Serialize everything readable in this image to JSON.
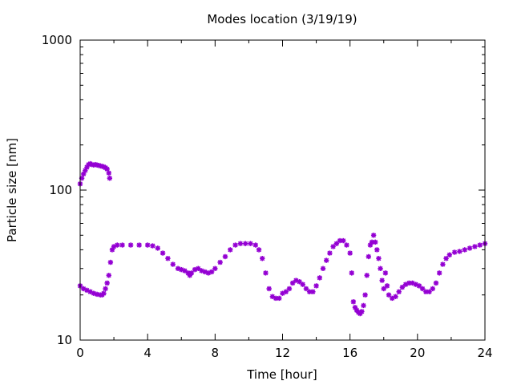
{
  "chart_data": {
    "type": "scatter",
    "title": "Modes location (3/19/19)",
    "xlabel": "Time [hour]",
    "ylabel": "Particle size [nm]",
    "xlim": [
      0,
      24
    ],
    "ylim": [
      10,
      1000
    ],
    "yscale": "log",
    "grid": false,
    "legend": "none",
    "marker_color": "#9400d3",
    "x_ticks": [
      0,
      4,
      8,
      12,
      16,
      20,
      24
    ],
    "x_tick_labels": [
      "0",
      "4",
      "8",
      "12",
      "16",
      "20",
      "24"
    ],
    "y_ticks": [
      10,
      100,
      1000
    ],
    "y_tick_labels": [
      "10",
      "100",
      "1000"
    ],
    "series": [
      {
        "points": [
          [
            0.0,
            110
          ],
          [
            0.1,
            120
          ],
          [
            0.2,
            128
          ],
          [
            0.3,
            135
          ],
          [
            0.4,
            142
          ],
          [
            0.5,
            148
          ],
          [
            0.6,
            150
          ],
          [
            0.7,
            148
          ],
          [
            0.8,
            147
          ],
          [
            0.9,
            148
          ],
          [
            1.0,
            147
          ],
          [
            1.1,
            146
          ],
          [
            1.2,
            145
          ],
          [
            1.3,
            144
          ],
          [
            1.4,
            143
          ],
          [
            1.5,
            141
          ],
          [
            1.6,
            138
          ],
          [
            1.7,
            130
          ],
          [
            1.75,
            120
          ]
        ]
      },
      {
        "points": [
          [
            0.0,
            23
          ],
          [
            0.2,
            22
          ],
          [
            0.4,
            21.5
          ],
          [
            0.6,
            21
          ],
          [
            0.8,
            20.5
          ],
          [
            1.0,
            20.2
          ],
          [
            1.2,
            20
          ],
          [
            1.3,
            20
          ],
          [
            1.4,
            20.5
          ],
          [
            1.5,
            22
          ],
          [
            1.6,
            24
          ],
          [
            1.7,
            27
          ],
          [
            1.8,
            33
          ],
          [
            1.9,
            40
          ],
          [
            2.0,
            42
          ],
          [
            2.2,
            43
          ],
          [
            2.5,
            43
          ],
          [
            3.0,
            43
          ],
          [
            3.5,
            43
          ],
          [
            4.0,
            43
          ],
          [
            4.3,
            42.5
          ],
          [
            4.6,
            41
          ],
          [
            4.9,
            38
          ],
          [
            5.2,
            35
          ],
          [
            5.5,
            32
          ],
          [
            5.8,
            30
          ],
          [
            6.0,
            29.5
          ],
          [
            6.2,
            29
          ],
          [
            6.4,
            28
          ],
          [
            6.5,
            27
          ],
          [
            6.6,
            28
          ],
          [
            6.8,
            29.5
          ],
          [
            7.0,
            30
          ],
          [
            7.2,
            29
          ],
          [
            7.4,
            28.5
          ],
          [
            7.6,
            28
          ],
          [
            7.8,
            28.5
          ],
          [
            8.0,
            30
          ],
          [
            8.3,
            33
          ],
          [
            8.6,
            36
          ],
          [
            8.9,
            40
          ],
          [
            9.2,
            43
          ],
          [
            9.5,
            44
          ],
          [
            9.8,
            44
          ],
          [
            10.1,
            44
          ],
          [
            10.4,
            43
          ],
          [
            10.6,
            40
          ],
          [
            10.8,
            35
          ],
          [
            11.0,
            28
          ],
          [
            11.2,
            22
          ],
          [
            11.4,
            19.5
          ],
          [
            11.6,
            19
          ],
          [
            11.8,
            19
          ],
          [
            12.0,
            20.5
          ],
          [
            12.2,
            21
          ],
          [
            12.4,
            22
          ],
          [
            12.6,
            24
          ],
          [
            12.8,
            25
          ],
          [
            13.0,
            24.5
          ],
          [
            13.2,
            23.5
          ],
          [
            13.4,
            22
          ],
          [
            13.6,
            21
          ],
          [
            13.8,
            21
          ],
          [
            14.0,
            23
          ],
          [
            14.2,
            26
          ],
          [
            14.4,
            30
          ],
          [
            14.6,
            34
          ],
          [
            14.8,
            38
          ],
          [
            15.0,
            42
          ],
          [
            15.2,
            44
          ],
          [
            15.4,
            46
          ],
          [
            15.6,
            46
          ],
          [
            15.8,
            43
          ],
          [
            16.0,
            38
          ],
          [
            16.1,
            28
          ],
          [
            16.2,
            18
          ],
          [
            16.3,
            16.5
          ],
          [
            16.4,
            15.8
          ],
          [
            16.5,
            15.3
          ],
          [
            16.6,
            15
          ],
          [
            16.7,
            15.5
          ],
          [
            16.8,
            17
          ],
          [
            16.9,
            20
          ],
          [
            17.0,
            27
          ],
          [
            17.1,
            36
          ],
          [
            17.2,
            43
          ],
          [
            17.3,
            45
          ],
          [
            17.4,
            50
          ],
          [
            17.5,
            45
          ],
          [
            17.6,
            40
          ],
          [
            17.7,
            35
          ],
          [
            17.8,
            30
          ],
          [
            17.9,
            25
          ],
          [
            18.0,
            22
          ],
          [
            18.1,
            28
          ],
          [
            18.2,
            23
          ],
          [
            18.3,
            20
          ],
          [
            18.5,
            19
          ],
          [
            18.7,
            19.5
          ],
          [
            18.9,
            21
          ],
          [
            19.1,
            22.5
          ],
          [
            19.3,
            23.5
          ],
          [
            19.5,
            24
          ],
          [
            19.7,
            24
          ],
          [
            19.9,
            23.5
          ],
          [
            20.1,
            23
          ],
          [
            20.3,
            22
          ],
          [
            20.5,
            21
          ],
          [
            20.7,
            21
          ],
          [
            20.9,
            22
          ],
          [
            21.1,
            24
          ],
          [
            21.3,
            28
          ],
          [
            21.5,
            32
          ],
          [
            21.7,
            35
          ],
          [
            21.9,
            37
          ],
          [
            22.2,
            38.5
          ],
          [
            22.5,
            39
          ],
          [
            22.8,
            40
          ],
          [
            23.1,
            41
          ],
          [
            23.4,
            42
          ],
          [
            23.7,
            43
          ],
          [
            24.0,
            44
          ]
        ]
      }
    ]
  }
}
